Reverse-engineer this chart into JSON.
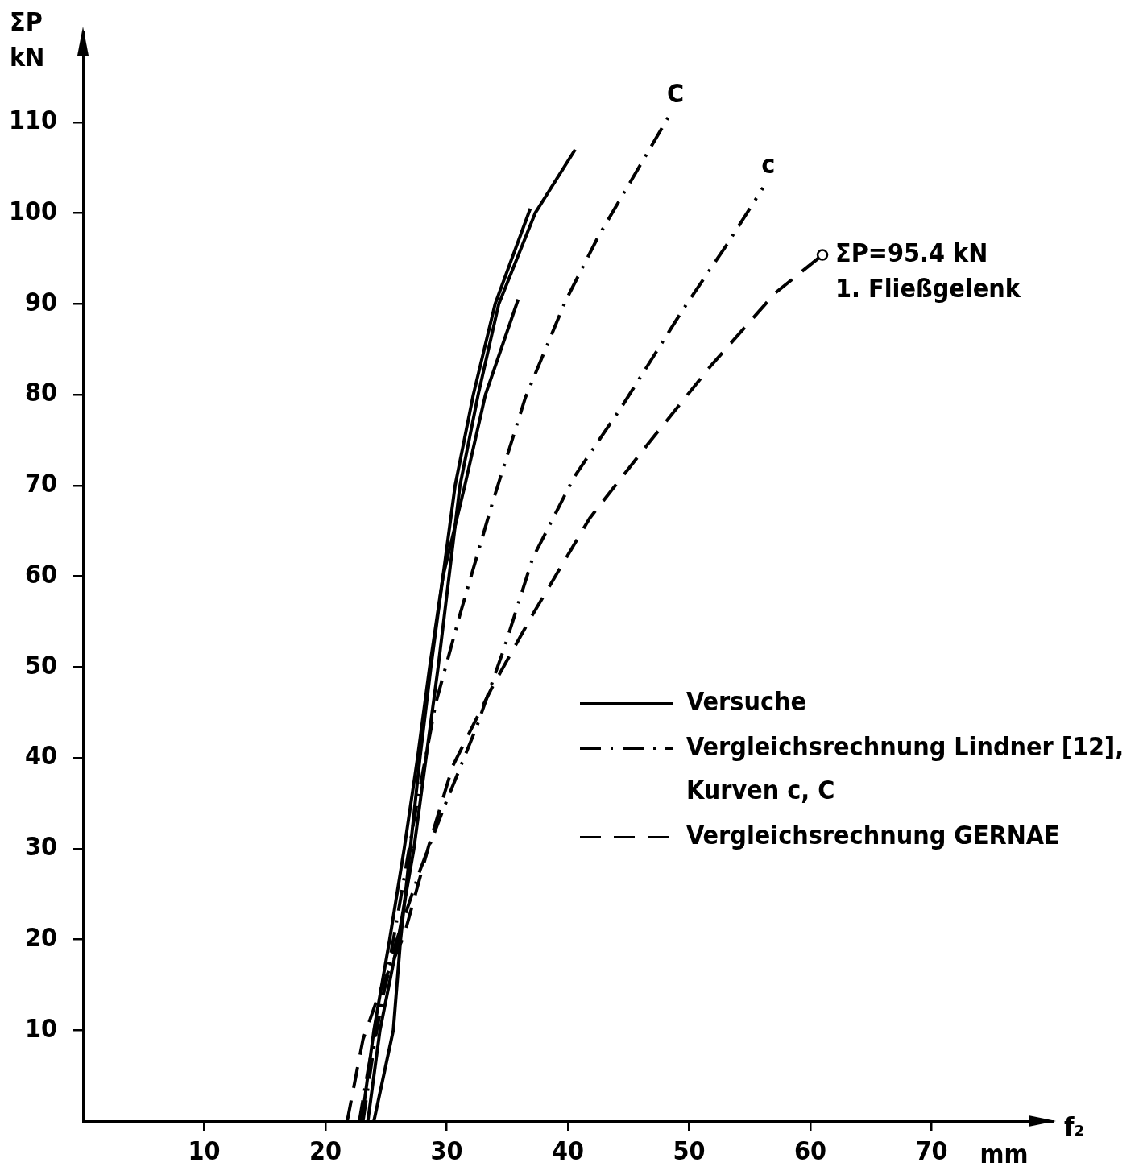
{
  "chart_data": {
    "type": "line",
    "xlabel": "f₂",
    "ylabel": "ΣP\nkN",
    "xlim": [
      0,
      80
    ],
    "ylim": [
      0,
      120
    ],
    "xticks": [
      10,
      20,
      30,
      40,
      50,
      60,
      70
    ],
    "yticks": [
      10,
      20,
      30,
      40,
      50,
      60,
      70,
      80,
      90,
      100,
      110
    ],
    "grid": false,
    "legend": "right",
    "marker": "none",
    "series": [
      {
        "name": "Versuche",
        "color": "#000000",
        "line_style": "solid",
        "x": [
          23.5,
          24.5,
          26,
          27.3,
          28.3,
          29.3,
          30.2,
          31.1,
          32.6,
          34.3,
          37.3,
          40.6
        ],
        "values": [
          0,
          10,
          20,
          30,
          40,
          50,
          60,
          70,
          80,
          90,
          100,
          107
        ]
      },
      {
        "color": "#000000",
        "line_style": "solid",
        "x": [
          23,
          24,
          25.3,
          26.5,
          27.6,
          28.6,
          29.7,
          30.7,
          32.2,
          34,
          36.9
        ],
        "values": [
          0,
          10,
          20,
          30,
          40,
          50,
          60,
          70,
          80,
          90,
          100.5
        ]
      },
      {
        "color": "#000000",
        "line_style": "solid",
        "x": [
          24,
          25.6,
          26.2,
          27,
          27.8,
          28.7,
          29.7,
          31.5,
          33.2,
          35.9
        ],
        "values": [
          0,
          10,
          20,
          30,
          40,
          50,
          60,
          70,
          80,
          90.5
        ]
      },
      {
        "name": "Vergleichsrechnung Lindner [12],\nKurven c, C",
        "color": "#000000",
        "line_style": "dashdot",
        "x": [
          23.1,
          24.1,
          25.8,
          27.5,
          29.1,
          31.1,
          33.8,
          36.5,
          39.8,
          42.5,
          48.3
        ],
        "values": [
          0,
          9,
          21.4,
          34.6,
          46,
          55.8,
          68.2,
          79.7,
          90.3,
          97.4,
          110.6
        ]
      },
      {
        "color": "#000000",
        "line_style": "dashdot",
        "x": [
          22.8,
          23.5,
          24.5,
          25.8,
          27.8,
          29.8,
          32.5,
          34.8,
          37.1,
          40.5,
          44.5,
          49.5,
          53.1,
          56.1
        ],
        "values": [
          0,
          5.5,
          12.5,
          19.6,
          27.6,
          34.6,
          43.5,
          52.3,
          62,
          70.9,
          78.8,
          89.4,
          96.5,
          102.8
        ]
      },
      {
        "name": "Vergleichsrechnung GERNAE",
        "color": "#000000",
        "line_style": "dashed",
        "x": [
          21.8,
          23.1,
          24.5,
          26.5,
          28.5,
          30.5,
          33.8,
          37.1,
          41.8,
          46.5,
          51.8,
          57.1,
          61
        ],
        "values": [
          0,
          9,
          14.3,
          20.5,
          30.2,
          39.1,
          47.9,
          55.8,
          66.4,
          74.4,
          83.2,
          91.2,
          95.4
        ]
      }
    ],
    "annotations": [
      {
        "text": "C",
        "x": 48.3,
        "y": 110.6
      },
      {
        "text": "c",
        "x": 56.1,
        "y": 102.8
      },
      {
        "text": "ΣP=95.4 kN\n1. Fließgelenk",
        "x": 61,
        "y": 95.4
      },
      "mm"
    ]
  }
}
